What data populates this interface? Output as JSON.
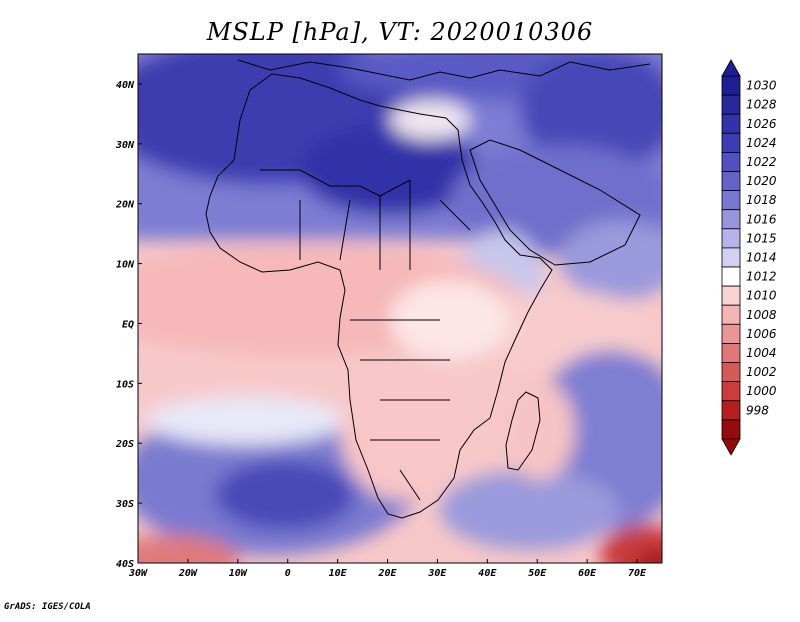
{
  "title": "MSLP [hPa], VT: 2020010306",
  "credit": "GrADS: IGES/COLA",
  "map": {
    "lon_range": [
      -30,
      75
    ],
    "lat_range": [
      -40,
      45
    ],
    "x_ticks": [
      "30W",
      "20W",
      "10W",
      "0",
      "10E",
      "20E",
      "30E",
      "40E",
      "50E",
      "60E",
      "70E"
    ],
    "x_tick_lons": [
      -30,
      -20,
      -10,
      0,
      10,
      20,
      30,
      40,
      50,
      60,
      70
    ],
    "y_ticks": [
      "40N",
      "30N",
      "20N",
      "10N",
      "EQ",
      "10S",
      "20S",
      "30S",
      "40S"
    ],
    "y_tick_lats": [
      40,
      30,
      20,
      10,
      0,
      -10,
      -20,
      -30,
      -40
    ]
  },
  "colorbar": {
    "levels": [
      "1030",
      "1028",
      "1026",
      "1024",
      "1022",
      "1020",
      "1018",
      "1016",
      "1015",
      "1014",
      "1012",
      "1010",
      "1008",
      "1006",
      "1004",
      "1002",
      "1000",
      "998"
    ],
    "colors": [
      "#1e1e96",
      "#28289e",
      "#3232aa",
      "#3c3cb4",
      "#5050c0",
      "#6464c8",
      "#7878d2",
      "#9696dc",
      "#b4b4e6",
      "#d2d2f0",
      "#ffffff",
      "#fad2d2",
      "#f5b4b4",
      "#eb9696",
      "#e17878",
      "#d75a5a",
      "#cd3c3c",
      "#b41e1e",
      "#960a0a"
    ]
  }
}
